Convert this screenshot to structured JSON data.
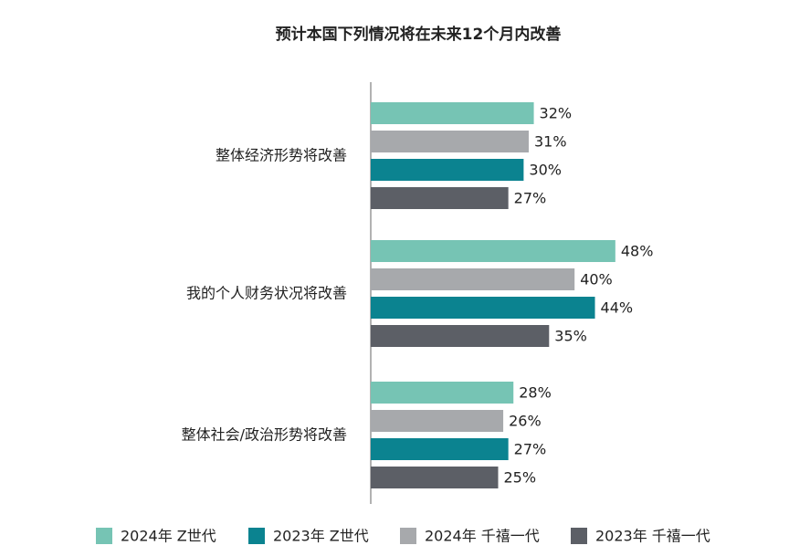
{
  "chart_data": {
    "type": "bar",
    "orientation": "horizontal",
    "title": "预计本国下列情况将在未来12个月内改善",
    "categories": [
      "整体经济形势将改善",
      "我的个人财务状况将改善",
      "整体社会/政治形势将改善"
    ],
    "series": [
      {
        "name": "2024年 Z世代",
        "color": "#76c4b4",
        "values": [
          32,
          48,
          28
        ],
        "value_labels": [
          "32%",
          "48%",
          "28%"
        ]
      },
      {
        "name": "2024年 千禧一代",
        "color": "#a7a9ac",
        "values": [
          31,
          40,
          26
        ],
        "value_labels": [
          "31%",
          "40%",
          "26%"
        ]
      },
      {
        "name": "2023年 Z世代",
        "color": "#0b8390",
        "values": [
          30,
          44,
          27
        ],
        "value_labels": [
          "30%",
          "44%",
          "27%"
        ]
      },
      {
        "name": "2023年 千禧一代",
        "color": "#5c5f66",
        "values": [
          27,
          35,
          25
        ],
        "value_labels": [
          "27%",
          "35%",
          "25%"
        ]
      }
    ]
  }
}
